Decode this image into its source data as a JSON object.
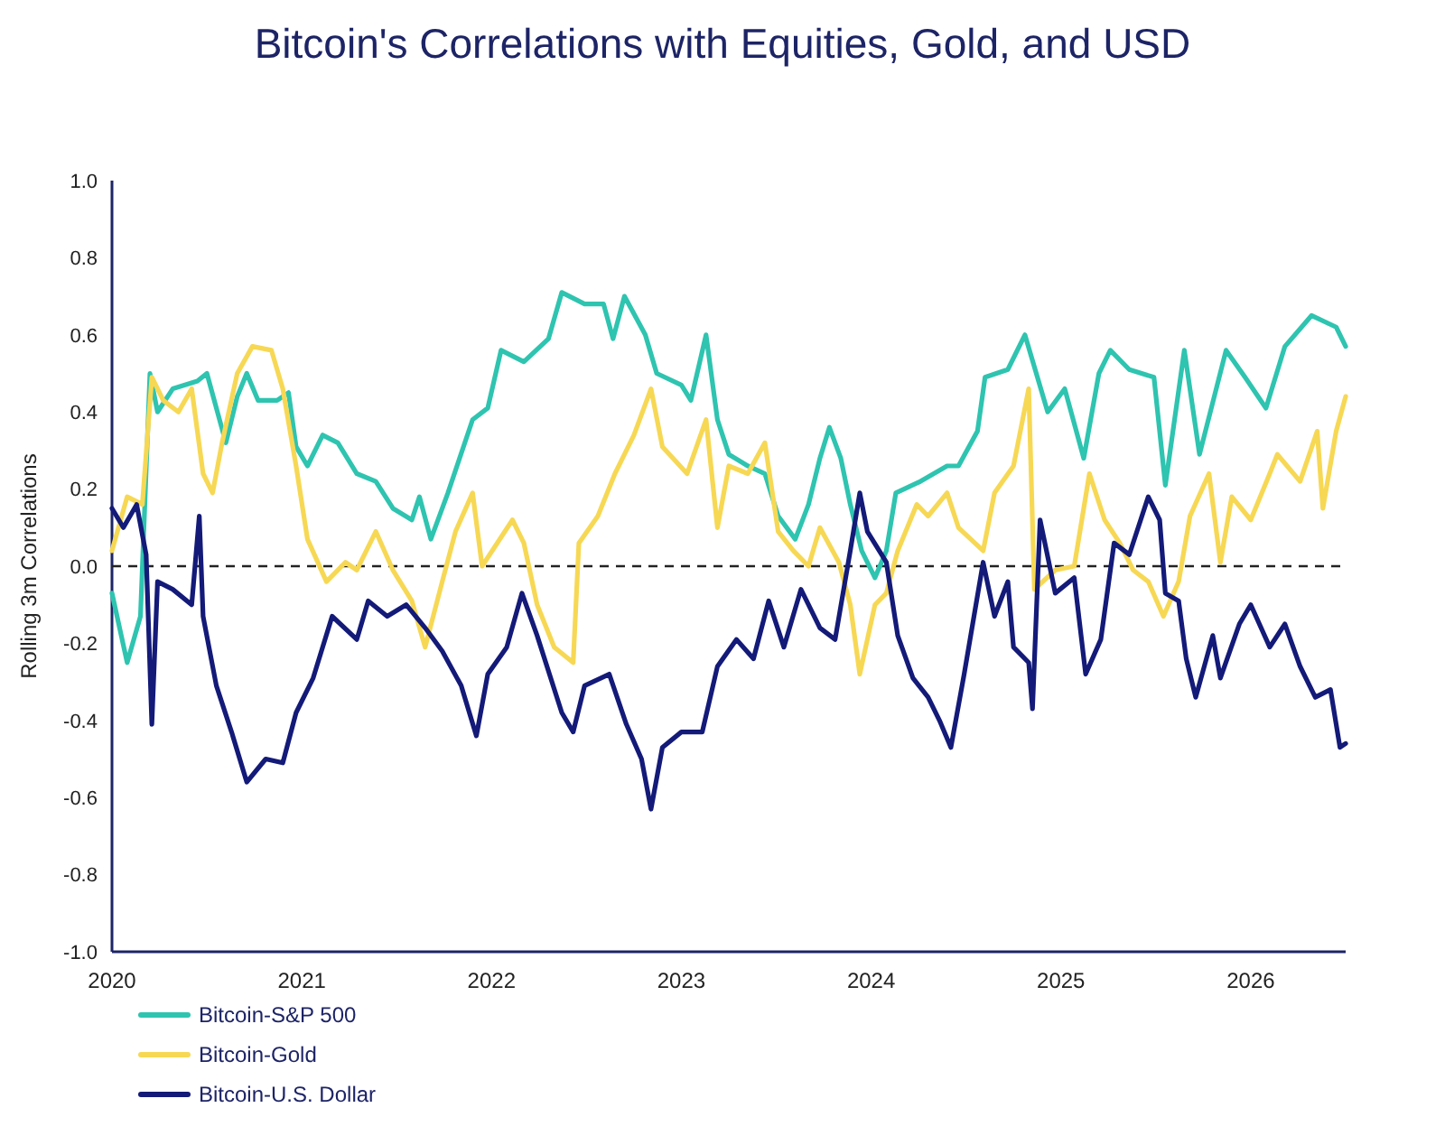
{
  "chart_data": {
    "type": "line",
    "title": "Bitcoin's Correlations with Equities, Gold, and USD",
    "ylabel": "Rolling 3m Correlations",
    "xlim": [
      2020,
      2026.5
    ],
    "xticks": [
      2020,
      2021,
      2022,
      2023,
      2024,
      2025,
      2026
    ],
    "ylim": [
      -1,
      1
    ],
    "yticks": [
      {
        "value": -1,
        "label": "-1.0"
      },
      -0.8,
      -0.6,
      -0.4,
      -0.2,
      {
        "value": 0,
        "label": "0.0"
      },
      0.2,
      0.4,
      0.6,
      0.8,
      {
        "value": 1,
        "label": "1.0"
      }
    ],
    "grid": false,
    "legend": "bottom left",
    "line_style": "solid",
    "marker": "none",
    "ref_lines": [
      {
        "axis": "y",
        "value": 0,
        "color": "#222222",
        "line_style": "dashed"
      }
    ],
    "series": [
      {
        "name": "Bitcoin-S&P 500",
        "color": "#2ec4b0",
        "x": [
          2020,
          2020.08,
          2020.15,
          2020.2,
          2020.24,
          2020.32,
          2020.45,
          2020.5,
          2020.6,
          2020.66,
          2020.71,
          2020.77,
          2020.87,
          2020.93,
          2020.97,
          2021.03,
          2021.11,
          2021.19,
          2021.29,
          2021.39,
          2021.48,
          2021.58,
          2021.62,
          2021.68,
          2021.77,
          2021.9,
          2021.98,
          2022.05,
          2022.17,
          2022.3,
          2022.37,
          2022.49,
          2022.59,
          2022.64,
          2022.7,
          2022.81,
          2022.87,
          2023,
          2023.05,
          2023.13,
          2023.19,
          2023.25,
          2023.35,
          2023.44,
          2023.51,
          2023.6,
          2023.67,
          2023.73,
          2023.78,
          2023.84,
          2023.89,
          2023.95,
          2024.02,
          2024.08,
          2024.13,
          2024.26,
          2024.4,
          2024.46,
          2024.56,
          2024.6,
          2024.72,
          2024.81,
          2024.93,
          2025.02,
          2025.12,
          2025.2,
          2025.26,
          2025.36,
          2025.49,
          2025.55,
          2025.65,
          2025.73,
          2025.87,
          2025.97,
          2026.08,
          2026.18,
          2026.32,
          2026.45,
          2026.5
        ],
        "values": [
          -0.07,
          -0.25,
          -0.13,
          0.5,
          0.4,
          0.46,
          0.48,
          0.5,
          0.32,
          0.44,
          0.5,
          0.43,
          0.43,
          0.45,
          0.31,
          0.26,
          0.34,
          0.32,
          0.24,
          0.22,
          0.15,
          0.12,
          0.18,
          0.07,
          0.19,
          0.38,
          0.41,
          0.56,
          0.53,
          0.59,
          0.71,
          0.68,
          0.68,
          0.59,
          0.7,
          0.6,
          0.5,
          0.47,
          0.43,
          0.6,
          0.38,
          0.29,
          0.26,
          0.24,
          0.13,
          0.07,
          0.16,
          0.28,
          0.36,
          0.28,
          0.16,
          0.04,
          -0.03,
          0.04,
          0.19,
          0.22,
          0.26,
          0.26,
          0.35,
          0.49,
          0.51,
          0.6,
          0.4,
          0.46,
          0.28,
          0.5,
          0.56,
          0.51,
          0.49,
          0.21,
          0.56,
          0.29,
          0.56,
          0.49,
          0.41,
          0.57,
          0.65,
          0.62,
          0.57
        ]
      },
      {
        "name": "Bitcoin-Gold",
        "color": "#f7d854",
        "x": [
          2020,
          2020.08,
          2020.16,
          2020.21,
          2020.27,
          2020.35,
          2020.42,
          2020.48,
          2020.53,
          2020.58,
          2020.66,
          2020.74,
          2020.84,
          2020.9,
          2020.97,
          2021.03,
          2021.13,
          2021.23,
          2021.29,
          2021.39,
          2021.48,
          2021.58,
          2021.65,
          2021.74,
          2021.81,
          2021.9,
          2021.95,
          2022.11,
          2022.17,
          2022.24,
          2022.33,
          2022.43,
          2022.46,
          2022.56,
          2022.65,
          2022.75,
          2022.84,
          2022.9,
          2023.03,
          2023.13,
          2023.19,
          2023.25,
          2023.35,
          2023.44,
          2023.51,
          2023.59,
          2023.67,
          2023.73,
          2023.83,
          2023.89,
          2023.94,
          2024.02,
          2024.08,
          2024.14,
          2024.24,
          2024.3,
          2024.4,
          2024.46,
          2024.59,
          2024.65,
          2024.75,
          2024.83,
          2024.86,
          2024.97,
          2025.07,
          2025.15,
          2025.23,
          2025.31,
          2025.38,
          2025.46,
          2025.54,
          2025.62,
          2025.68,
          2025.78,
          2025.84,
          2025.9,
          2026,
          2026.1,
          2026.14,
          2026.26,
          2026.35,
          2026.38,
          2026.45,
          2026.5
        ],
        "values": [
          0.04,
          0.18,
          0.16,
          0.49,
          0.43,
          0.4,
          0.46,
          0.24,
          0.19,
          0.32,
          0.5,
          0.57,
          0.56,
          0.46,
          0.26,
          0.07,
          -0.04,
          0.01,
          -0.01,
          0.09,
          -0.01,
          -0.09,
          -0.21,
          -0.04,
          0.09,
          0.19,
          0,
          0.12,
          0.06,
          -0.1,
          -0.21,
          -0.25,
          0.06,
          0.13,
          0.24,
          0.34,
          0.46,
          0.31,
          0.24,
          0.38,
          0.1,
          0.26,
          0.24,
          0.32,
          0.09,
          0.04,
          0,
          0.1,
          0.01,
          -0.1,
          -0.28,
          -0.1,
          -0.07,
          0.04,
          0.16,
          0.13,
          0.19,
          0.1,
          0.04,
          0.19,
          0.26,
          0.46,
          -0.06,
          -0.01,
          0,
          0.24,
          0.12,
          0.06,
          -0.01,
          -0.04,
          -0.13,
          -0.04,
          0.13,
          0.24,
          0.01,
          0.18,
          0.12,
          0.24,
          0.29,
          0.22,
          0.35,
          0.15,
          0.35,
          0.44
        ]
      },
      {
        "name": "Bitcoin-U.S. Dollar",
        "color": "#131a78",
        "x": [
          2020,
          2020.06,
          2020.13,
          2020.18,
          2020.21,
          2020.24,
          2020.32,
          2020.42,
          2020.46,
          2020.48,
          2020.55,
          2020.63,
          2020.71,
          2020.81,
          2020.9,
          2020.97,
          2021.06,
          2021.16,
          2021.29,
          2021.35,
          2021.45,
          2021.55,
          2021.65,
          2021.74,
          2021.84,
          2021.92,
          2021.98,
          2022.08,
          2022.16,
          2022.24,
          2022.37,
          2022.43,
          2022.49,
          2022.62,
          2022.71,
          2022.79,
          2022.84,
          2022.9,
          2023,
          2023.11,
          2023.19,
          2023.29,
          2023.38,
          2023.46,
          2023.54,
          2023.63,
          2023.73,
          2023.81,
          2023.89,
          2023.94,
          2023.98,
          2024.08,
          2024.14,
          2024.22,
          2024.3,
          2024.36,
          2024.42,
          2024.49,
          2024.59,
          2024.65,
          2024.72,
          2024.75,
          2024.83,
          2024.85,
          2024.89,
          2024.97,
          2025.07,
          2025.13,
          2025.21,
          2025.28,
          2025.36,
          2025.46,
          2025.52,
          2025.55,
          2025.62,
          2025.66,
          2025.71,
          2025.8,
          2025.84,
          2025.94,
          2026,
          2026.1,
          2026.18,
          2026.26,
          2026.34,
          2026.42,
          2026.47,
          2026.5
        ],
        "values": [
          0.15,
          0.1,
          0.16,
          0.03,
          -0.41,
          -0.04,
          -0.06,
          -0.1,
          0.13,
          -0.13,
          -0.31,
          -0.43,
          -0.56,
          -0.5,
          -0.51,
          -0.38,
          -0.29,
          -0.13,
          -0.19,
          -0.09,
          -0.13,
          -0.1,
          -0.16,
          -0.22,
          -0.31,
          -0.44,
          -0.28,
          -0.21,
          -0.07,
          -0.18,
          -0.38,
          -0.43,
          -0.31,
          -0.28,
          -0.41,
          -0.5,
          -0.63,
          -0.47,
          -0.43,
          -0.43,
          -0.26,
          -0.19,
          -0.24,
          -0.09,
          -0.21,
          -0.06,
          -0.16,
          -0.19,
          0.04,
          0.19,
          0.09,
          0.01,
          -0.18,
          -0.29,
          -0.34,
          -0.4,
          -0.47,
          -0.28,
          0.01,
          -0.13,
          -0.04,
          -0.21,
          -0.25,
          -0.37,
          0.12,
          -0.07,
          -0.03,
          -0.28,
          -0.19,
          0.06,
          0.03,
          0.18,
          0.12,
          -0.07,
          -0.09,
          -0.24,
          -0.34,
          -0.18,
          -0.29,
          -0.15,
          -0.1,
          -0.21,
          -0.15,
          -0.26,
          -0.34,
          -0.32,
          -0.47,
          -0.46
        ]
      }
    ]
  }
}
